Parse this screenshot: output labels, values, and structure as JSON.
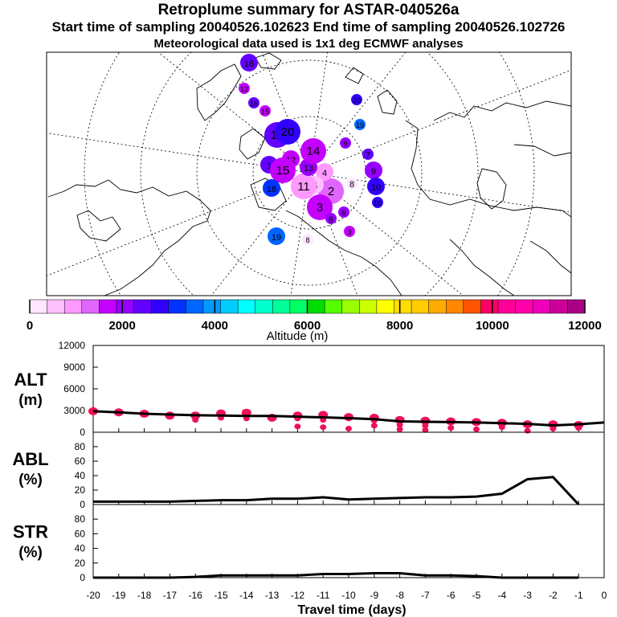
{
  "header": {
    "title": "Retroplume summary for ASTAR-040526a",
    "sampling": "Start time of sampling 20040526.102623     End time of sampling 20040526.102726",
    "met": "Meteorological data used is 1x1 deg ECMWF analyses"
  },
  "map": {
    "clusters": [
      {
        "label": "1",
        "alt": 2500,
        "size": "m"
      },
      {
        "label": "2",
        "alt": 1200,
        "size": "l"
      },
      {
        "label": "3",
        "alt": 1500,
        "size": "l"
      },
      {
        "label": "4",
        "alt": 900,
        "size": "m"
      },
      {
        "label": "5",
        "alt": 700,
        "size": "m"
      },
      {
        "label": "6",
        "alt": 2200,
        "size": "s"
      },
      {
        "label": "7",
        "alt": 2300,
        "size": "s"
      },
      {
        "label": "8",
        "alt": 300,
        "size": "s"
      },
      {
        "label": "9",
        "alt": 2000,
        "size": "m"
      },
      {
        "label": "10",
        "alt": 2700,
        "size": "m"
      },
      {
        "label": "11",
        "alt": 800,
        "size": "l"
      },
      {
        "label": "12",
        "alt": 1800,
        "size": "m"
      },
      {
        "label": "13",
        "alt": 2100,
        "size": "m"
      },
      {
        "label": "14",
        "alt": 1600,
        "size": "l"
      },
      {
        "label": "15",
        "alt": 1700,
        "size": "l"
      },
      {
        "label": "16",
        "alt": 2400,
        "size": "m"
      },
      {
        "label": "17",
        "alt": 2600,
        "size": "l"
      },
      {
        "label": "18",
        "alt": 3000,
        "size": "m"
      },
      {
        "label": "19",
        "alt": 3500,
        "size": "m"
      },
      {
        "label": "20",
        "alt": 2900,
        "size": "l"
      }
    ]
  },
  "colorbar": {
    "colors": [
      "#ffe6ff",
      "#ffc0ff",
      "#ff99ff",
      "#e066ff",
      "#c400ff",
      "#9600ff",
      "#6400ff",
      "#3200ff",
      "#0033ff",
      "#0066ff",
      "#0099ff",
      "#00ccff",
      "#00ffff",
      "#00ffcc",
      "#00ff99",
      "#00ff66",
      "#00dd00",
      "#55ff00",
      "#99ff00",
      "#ccff00",
      "#ffff00",
      "#ffdd00",
      "#ffcc00",
      "#ffaa00",
      "#ff8800",
      "#ff5500",
      "#ff0066",
      "#ff0099",
      "#ff00aa",
      "#ee00bb",
      "#cc0099",
      "#aa0088"
    ],
    "ticks": [
      "0",
      "2000",
      "4000",
      "6000",
      "8000",
      "10000",
      "12000"
    ],
    "label": "Altitude (m)"
  },
  "chart_data": [
    {
      "type": "line",
      "title": "ALT (m)",
      "ylabel": "ALT\n(m)",
      "x": [
        -20,
        -19,
        -18,
        -17,
        -16,
        -15,
        -14,
        -13,
        -12,
        -11,
        -10,
        -9,
        -8,
        -7,
        -6,
        -5,
        -4,
        -3,
        -2,
        -1,
        0
      ],
      "values": [
        2900,
        2750,
        2550,
        2450,
        2350,
        2300,
        2250,
        2250,
        2150,
        2050,
        1950,
        1800,
        1500,
        1450,
        1400,
        1350,
        1250,
        1150,
        950,
        1100,
        1350
      ],
      "yticks": [
        "0",
        "3000",
        "6000",
        "9000",
        "12000"
      ],
      "ylim": [
        0,
        12000
      ],
      "scatter_columns": [
        {
          "x": -20,
          "points": [
            2900
          ]
        },
        {
          "x": -19,
          "points": [
            2750
          ]
        },
        {
          "x": -18,
          "points": [
            2550
          ]
        },
        {
          "x": -17,
          "points": [
            2300
          ]
        },
        {
          "x": -16,
          "points": [
            2300,
            1700
          ]
        },
        {
          "x": -15,
          "points": [
            2600,
            2000
          ]
        },
        {
          "x": -14,
          "points": [
            2700,
            1900
          ]
        },
        {
          "x": -13,
          "points": [
            2000
          ]
        },
        {
          "x": -12,
          "points": [
            2300,
            1900,
            800
          ]
        },
        {
          "x": -11,
          "points": [
            2400,
            1700,
            700
          ]
        },
        {
          "x": -10,
          "points": [
            2100,
            1900,
            500
          ]
        },
        {
          "x": -9,
          "points": [
            2000,
            1600,
            900
          ]
        },
        {
          "x": -8,
          "points": [
            1700,
            1000,
            400
          ]
        },
        {
          "x": -7,
          "points": [
            1600,
            900,
            300
          ]
        },
        {
          "x": -6,
          "points": [
            1500,
            600
          ]
        },
        {
          "x": -5,
          "points": [
            1400,
            400
          ]
        },
        {
          "x": -4,
          "points": [
            1300,
            700
          ]
        },
        {
          "x": -3,
          "points": [
            1100,
            200
          ]
        },
        {
          "x": -2,
          "points": [
            1100,
            500
          ]
        },
        {
          "x": -1,
          "points": [
            1000,
            600
          ]
        }
      ]
    },
    {
      "type": "line",
      "title": "ABL (%)",
      "ylabel": "ABL\n(%)",
      "x": [
        -20,
        -19,
        -18,
        -17,
        -16,
        -15,
        -14,
        -13,
        -12,
        -11,
        -10,
        -9,
        -8,
        -7,
        -6,
        -5,
        -4,
        -3,
        -2,
        -1
      ],
      "values": [
        4,
        4,
        4,
        4,
        5,
        6,
        6,
        8,
        8,
        10,
        7,
        8,
        9,
        10,
        10,
        11,
        15,
        35,
        38,
        0
      ],
      "yticks": [
        "0",
        "20",
        "40",
        "60",
        "80"
      ],
      "ylim": [
        0,
        100
      ]
    },
    {
      "type": "line",
      "title": "STR (%)",
      "ylabel": "STR\n(%)",
      "x": [
        -20,
        -19,
        -18,
        -17,
        -16,
        -15,
        -14,
        -13,
        -12,
        -11,
        -10,
        -9,
        -8,
        -7,
        -6,
        -5,
        -4,
        -3,
        -2,
        -1
      ],
      "values": [
        0,
        0,
        0,
        0,
        1,
        3,
        3,
        3,
        3,
        5,
        5,
        6,
        6,
        3,
        3,
        2,
        0,
        0,
        0,
        0
      ],
      "yticks": [
        "0",
        "20",
        "40",
        "60",
        "80"
      ],
      "ylim": [
        0,
        100
      ],
      "xticks": [
        "-20",
        "-19",
        "-18",
        "-17",
        "-16",
        "-15",
        "-14",
        "-13",
        "-12",
        "-11",
        "-10",
        "-9",
        "-8",
        "-7",
        "-6",
        "-5",
        "-4",
        "-3",
        "-2",
        "-1",
        "0"
      ],
      "xlabel": "Travel time (days)"
    }
  ]
}
